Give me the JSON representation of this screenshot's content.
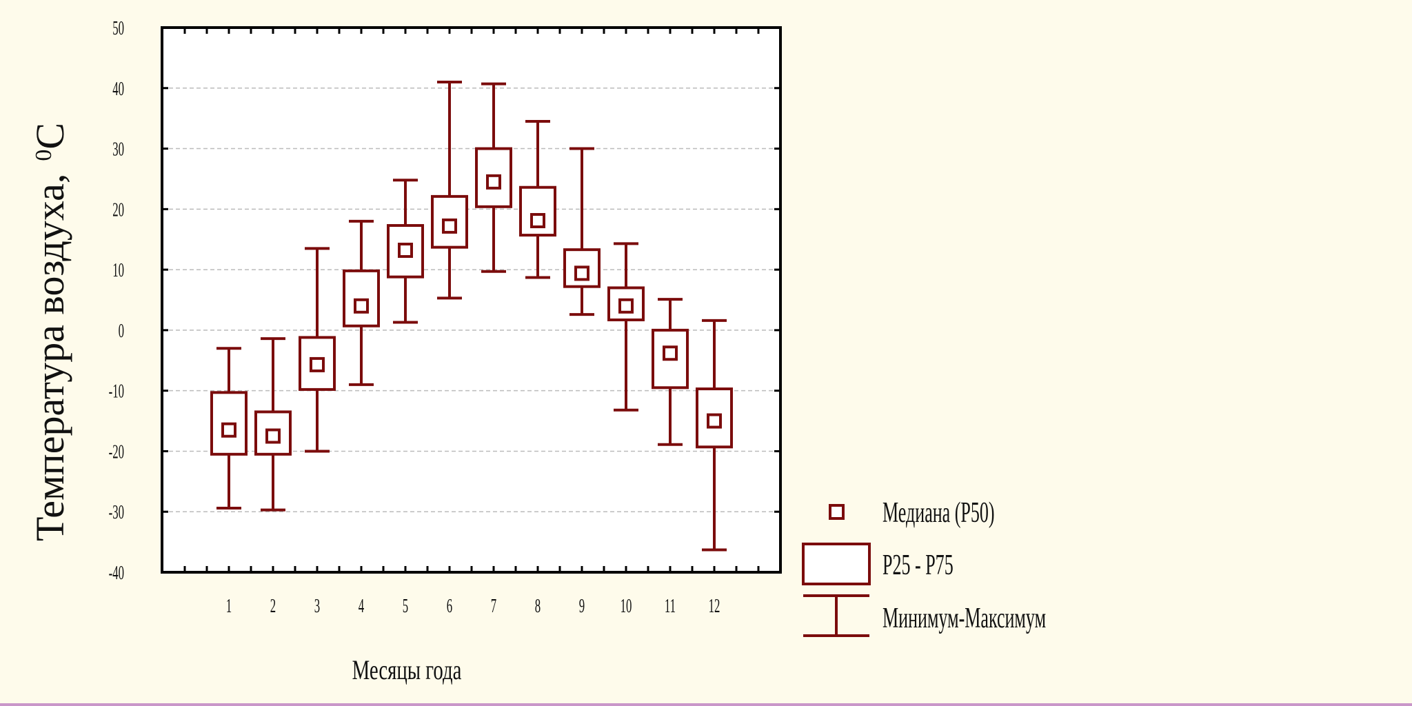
{
  "chart_data": {
    "type": "box",
    "categories": [
      "1",
      "2",
      "3",
      "4",
      "5",
      "6",
      "7",
      "8",
      "9",
      "10",
      "11",
      "12"
    ],
    "series": [
      {
        "name": "Медиана (P50)",
        "values": [
          -16.5,
          -17.5,
          -5.7,
          4.0,
          13.2,
          17.2,
          24.5,
          18.1,
          9.4,
          4.0,
          -3.8,
          -15.0
        ]
      },
      {
        "name": "P25 - P75",
        "q1": [
          -20.5,
          -20.5,
          -9.8,
          0.7,
          8.8,
          13.7,
          20.4,
          15.7,
          7.2,
          1.7,
          -9.5,
          -19.3
        ],
        "q3": [
          -10.3,
          -13.5,
          -1.2,
          9.8,
          17.3,
          22.1,
          30.0,
          23.6,
          13.3,
          7.0,
          0.0,
          -9.7
        ]
      },
      {
        "name": "Минимум-Максимум",
        "min": [
          -29.4,
          -29.7,
          -20.0,
          -9.0,
          1.3,
          5.3,
          9.7,
          8.7,
          2.6,
          -13.2,
          -18.9,
          -36.3
        ],
        "max": [
          -3.0,
          -1.4,
          13.5,
          18.0,
          24.8,
          41.0,
          40.7,
          34.5,
          30.0,
          14.3,
          5.1,
          1.6
        ]
      }
    ],
    "xlabel": "Месяцы года",
    "ylabel": "Температура воздуха,",
    "ylabel_unit_sup": "0",
    "ylabel_unit": "C",
    "ylim": [
      -40,
      50
    ],
    "yticks": [
      "50",
      "40",
      "30",
      "20",
      "10",
      "0",
      "-10",
      "-20",
      "-30",
      "-40"
    ],
    "ytick_values": [
      50,
      40,
      30,
      20,
      10,
      0,
      -10,
      -20,
      -30,
      -40
    ],
    "grid": "horizontal dashed",
    "legend_position": "bottom-right outside plot",
    "legend": [
      "Медиана (P50)",
      "P25 - P75",
      "Минимум-Максимум"
    ],
    "colors": {
      "series": "#7b0c0c",
      "axis": "#000000",
      "grid": "#bbbbbb",
      "plot_bg": "#ffffff",
      "page_bg": "#fefbeb"
    }
  }
}
